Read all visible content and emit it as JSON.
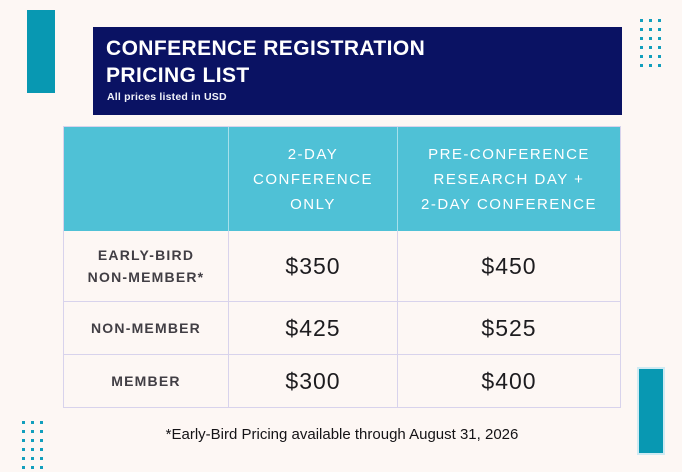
{
  "banner": {
    "title": "CONFERENCE REGISTRATION\nPRICING LIST",
    "subtitle": "All prices listed in USD"
  },
  "table": {
    "column_headers": [
      "2-DAY\nCONFERENCE\nONLY",
      "PRE-CONFERENCE\nRESEARCH DAY +\n2-DAY CONFERENCE"
    ],
    "rows": [
      {
        "label": "EARLY-BIRD\nNON-MEMBER*",
        "two_day": "$350",
        "pre_conf": "$450"
      },
      {
        "label": "NON-MEMBER",
        "two_day": "$425",
        "pre_conf": "$525"
      },
      {
        "label": "MEMBER",
        "two_day": "$300",
        "pre_conf": "$400"
      }
    ]
  },
  "footnote": "*Early-Bird Pricing available through August 31, 2026",
  "colors": {
    "background": "#fdf7f4",
    "banner_navy": "#0a1263",
    "header_teal": "#4fc1d6",
    "accent_teal_dark": "#0898b2",
    "dot_teal": "#129fbd",
    "table_border": "#d8d3ec",
    "label_text": "#413e44",
    "price_text": "#1d1c1f"
  }
}
